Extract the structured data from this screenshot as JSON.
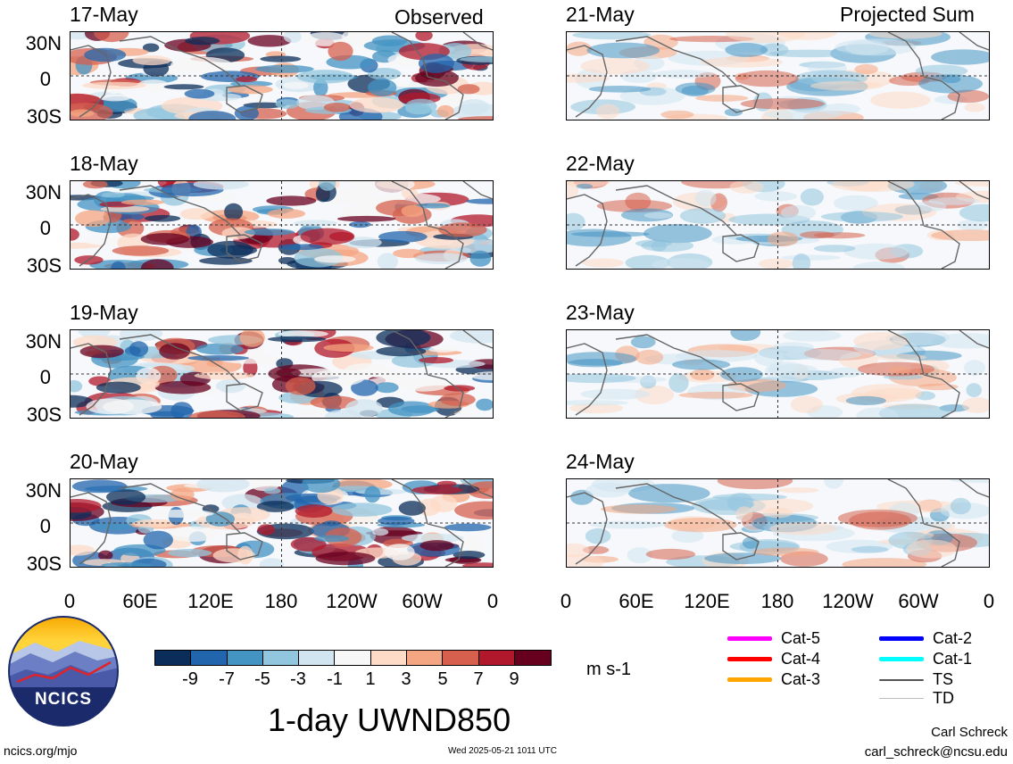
{
  "header": {
    "left_label": "Observed",
    "right_label": "Projected Sum"
  },
  "panels": {
    "observed": [
      {
        "date": "17-May"
      },
      {
        "date": "18-May"
      },
      {
        "date": "19-May"
      },
      {
        "date": "20-May"
      }
    ],
    "projected": [
      {
        "date": "21-May"
      },
      {
        "date": "22-May"
      },
      {
        "date": "23-May"
      },
      {
        "date": "24-May"
      }
    ]
  },
  "lat_ticks": [
    "30N",
    "0",
    "30S"
  ],
  "lon_ticks": [
    "0",
    "60E",
    "120E",
    "180",
    "120W",
    "60W",
    "0"
  ],
  "colorbar": {
    "colors": [
      "#0b2d5a",
      "#2166ac",
      "#4393c3",
      "#92c5de",
      "#d1e5f0",
      "#f7f7f7",
      "#fddbc7",
      "#f4a582",
      "#d6604d",
      "#b2182b",
      "#67001f"
    ],
    "labels": [
      "-9",
      "-7",
      "-5",
      "-3",
      "-1",
      "1",
      "3",
      "5",
      "7",
      "9"
    ],
    "units": "m s-1"
  },
  "title": "1-day UWND850",
  "storm_legend": [
    {
      "label": "Cat-5",
      "color": "#ff00ff"
    },
    {
      "label": "Cat-4",
      "color": "#ff0000"
    },
    {
      "label": "Cat-3",
      "color": "#ffa500"
    },
    {
      "label": "Cat-2",
      "color": "#0000ff"
    },
    {
      "label": "Cat-1",
      "color": "#00ffff"
    },
    {
      "label": "TS",
      "color": "#555555"
    },
    {
      "label": "TD",
      "color": "#bbbbbb"
    }
  ],
  "logo": {
    "text": "NCICS",
    "icon": "ncics-logo-icon"
  },
  "footer": {
    "url": "ncics.org/mjo",
    "timestamp": "Wed 2025-05-21 1011 UTC",
    "author_name": "Carl Schreck",
    "author_email": "carl_schreck@ncsu.edu"
  }
}
